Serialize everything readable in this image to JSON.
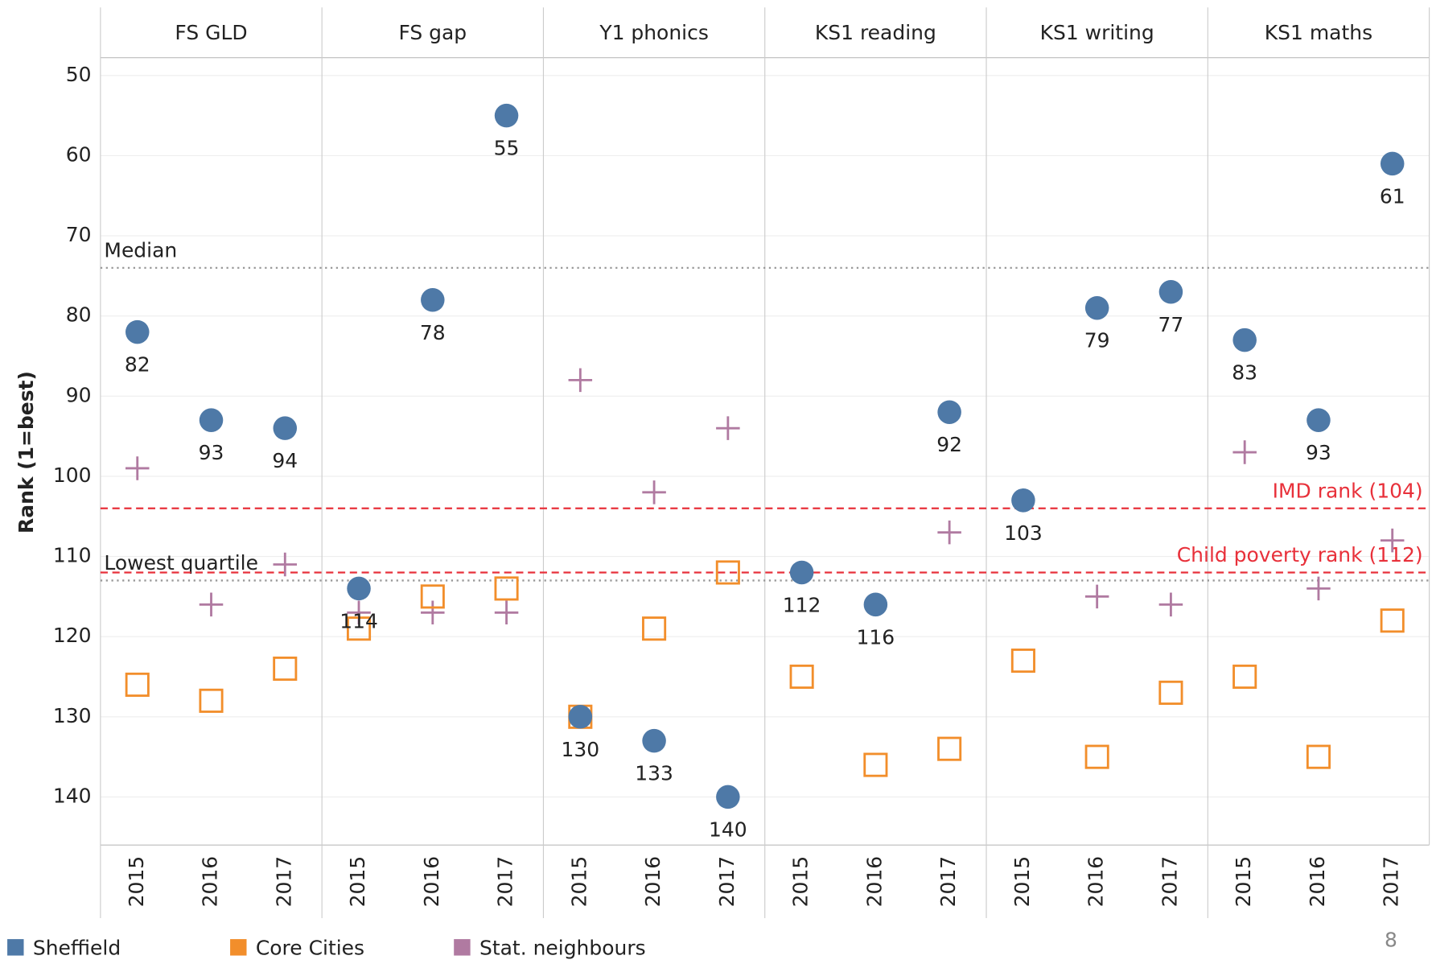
{
  "chart_data": {
    "type": "scatter",
    "y_axis_label": "Rank (1=best)",
    "panels": [
      "FS GLD",
      "FS gap",
      "Y1 phonics",
      "KS1 reading",
      "KS1 writing",
      "KS1 maths"
    ],
    "x": [
      "2015",
      "2016",
      "2017",
      "2015",
      "2016",
      "2017",
      "2015",
      "2016",
      "2017",
      "2015",
      "2016",
      "2017",
      "2015",
      "2016",
      "2017",
      "2015",
      "2016",
      "2017"
    ],
    "series": [
      {
        "name": "Sheffield",
        "color": "#4e79a7",
        "marker": "circle",
        "show_labels": true,
        "values": [
          82,
          93,
          94,
          114,
          78,
          55,
          130,
          133,
          140,
          112,
          116,
          92,
          103,
          79,
          77,
          83,
          93,
          61
        ]
      },
      {
        "name": "Core Cities",
        "color": "#f28e2b",
        "marker": "square",
        "values": [
          126,
          128,
          124,
          119,
          115,
          114,
          130,
          119,
          112,
          125,
          136,
          134,
          123,
          135,
          127,
          125,
          135,
          118
        ]
      },
      {
        "name": "Stat. neighbours",
        "color": "#b07aa1",
        "marker": "plus",
        "values": [
          99,
          116,
          111,
          117,
          117,
          117,
          88,
          102,
          94,
          null,
          null,
          107,
          null,
          115,
          116,
          97,
          114,
          108
        ]
      }
    ],
    "ylim": [
      48,
      146
    ],
    "y_reversed": true,
    "yticks": [
      50,
      60,
      70,
      80,
      90,
      100,
      110,
      120,
      130,
      140
    ],
    "grid": true,
    "reference_lines": [
      {
        "label": "Median",
        "value": 74,
        "color": "#999999",
        "style": "dotted",
        "anchor": "left"
      },
      {
        "label": "Lowest quartile",
        "value": 113,
        "color": "#999999",
        "style": "dotted",
        "anchor": "left"
      },
      {
        "label": "IMD rank (104)",
        "value": 104,
        "color": "#e8303a",
        "style": "dashed",
        "anchor": "right"
      },
      {
        "label": "Child poverty rank (112)",
        "value": 112,
        "color": "#e8303a",
        "style": "dashed",
        "anchor": "right"
      }
    ],
    "legend": "bottom",
    "page_number": "8"
  }
}
